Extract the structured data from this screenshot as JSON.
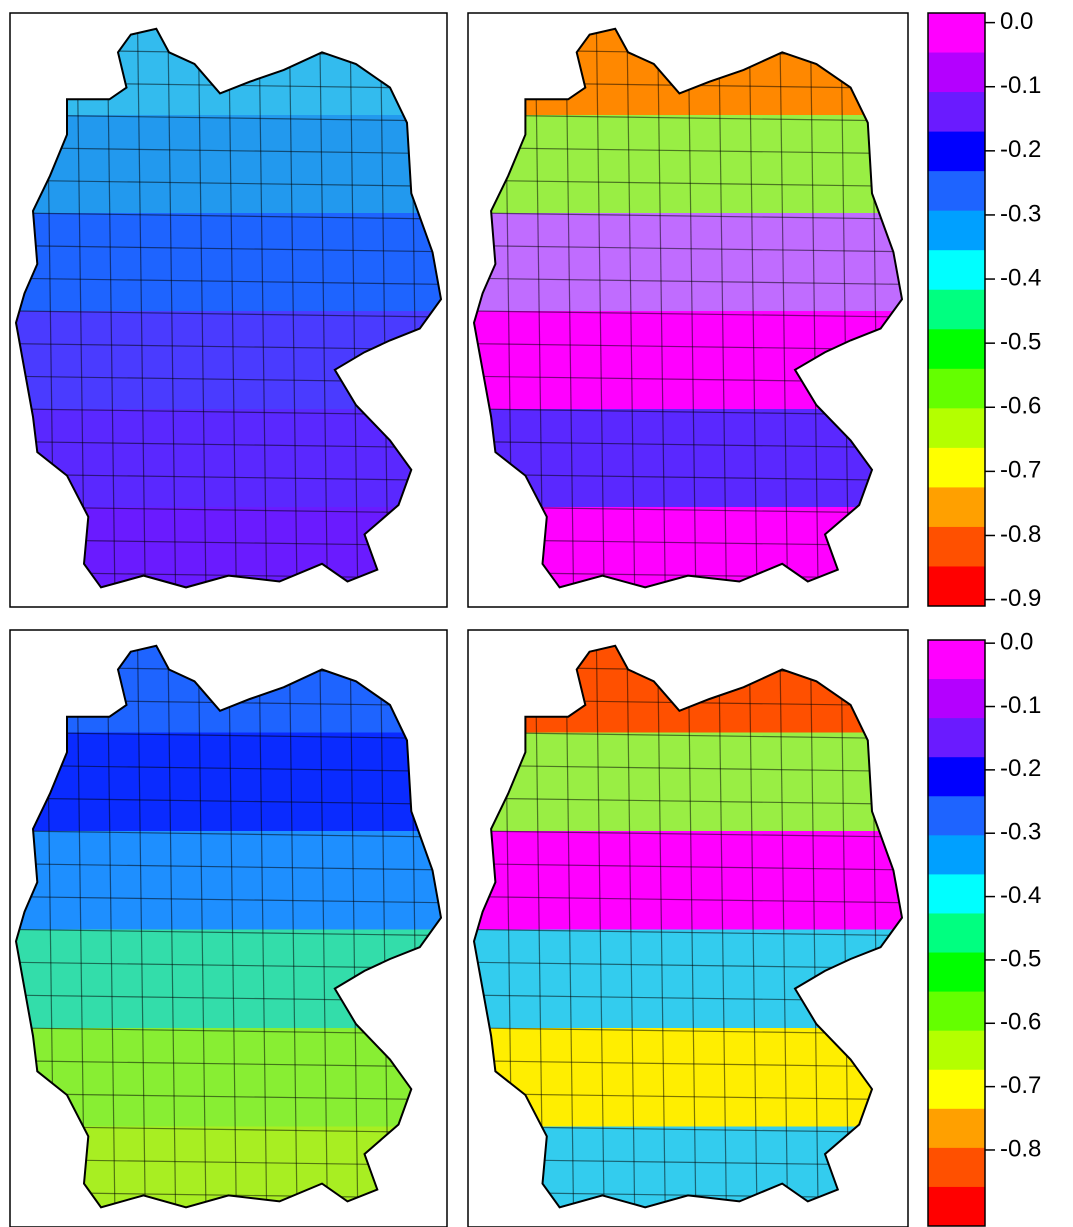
{
  "palette": [
    "#ff00ff",
    "#b400ff",
    "#6a1bff",
    "#0000ff",
    "#1e64ff",
    "#00a0ff",
    "#00ffff",
    "#00ff80",
    "#00ff00",
    "#64ff00",
    "#b4ff00",
    "#ffff00",
    "#ffa000",
    "#ff5000",
    "#ff0000"
  ],
  "maps": [
    {
      "bands": [
        "#33bbee",
        "#2299ee",
        "#1e64ff",
        "#4a3bff",
        "#5a28ff",
        "#6a1bff"
      ]
    },
    {
      "bands": [
        "#ff8800",
        "#99ee44",
        "#c06cff",
        "#ff00ff",
        "#5a28ff",
        "#ff00ff"
      ]
    },
    {
      "bands": [
        "#1e64ff",
        "#0a2bff",
        "#1e8fff",
        "#33ddaa",
        "#88ee33",
        "#a8ee22"
      ]
    },
    {
      "bands": [
        "#ff5000",
        "#99ee44",
        "#ff00ff",
        "#33ccee",
        "#ffee00",
        "#33ccee"
      ]
    }
  ],
  "legends": [
    {
      "lim": [
        -0.91,
        0.015
      ],
      "ticks": [
        {
          "value": 0,
          "label": "0.0"
        },
        {
          "value": -0.1,
          "label": "-0.1"
        },
        {
          "value": -0.2,
          "label": "-0.2"
        },
        {
          "value": -0.3,
          "label": "-0.3"
        },
        {
          "value": -0.4,
          "label": "-0.4"
        },
        {
          "value": -0.5,
          "label": "-0.5"
        },
        {
          "value": -0.6,
          "label": "-0.6"
        },
        {
          "value": -0.7,
          "label": "-0.7"
        },
        {
          "value": -0.8,
          "label": "-0.8"
        },
        {
          "value": -0.9,
          "label": "-0.9"
        }
      ]
    },
    {
      "lim": [
        -0.92,
        0.005
      ],
      "ticks": [
        {
          "value": 0,
          "label": "0.0"
        },
        {
          "value": -0.1,
          "label": "-0.1"
        },
        {
          "value": -0.2,
          "label": "-0.2"
        },
        {
          "value": -0.3,
          "label": "-0.3"
        },
        {
          "value": -0.4,
          "label": "-0.4"
        },
        {
          "value": -0.5,
          "label": "-0.5"
        },
        {
          "value": -0.6,
          "label": "-0.6"
        },
        {
          "value": -0.7,
          "label": "-0.7"
        },
        {
          "value": -0.8,
          "label": "-0.8"
        }
      ]
    }
  ]
}
